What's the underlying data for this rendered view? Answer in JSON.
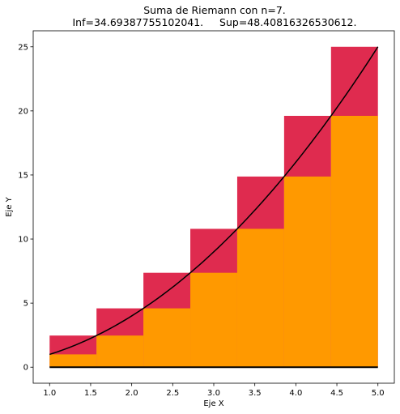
{
  "chart_data": {
    "type": "bar",
    "title": "Suma de Riemann con n=7.",
    "subtitle": "Inf=34.69387755102041.     Sup=48.40816326530612.",
    "xlabel": "Eje X",
    "ylabel": "Eje Y",
    "xlim": [
      0.8,
      5.2
    ],
    "ylim": [
      -1.25,
      26.25
    ],
    "xticks": [
      1.0,
      1.5,
      2.0,
      2.5,
      3.0,
      3.5,
      4.0,
      4.5,
      5.0
    ],
    "xtick_labels": [
      "1.0",
      "1.5",
      "2.0",
      "2.5",
      "3.0",
      "3.5",
      "4.0",
      "4.5",
      "5.0"
    ],
    "yticks": [
      0,
      5,
      10,
      15,
      20,
      25
    ],
    "ytick_labels": [
      "0",
      "5",
      "10",
      "15",
      "20",
      "25"
    ],
    "grid": false,
    "function": "x^2",
    "interval": [
      1,
      5
    ],
    "n": 7,
    "x_left_edges": [
      1.0,
      1.5714,
      2.1429,
      2.7143,
      3.2857,
      3.8571,
      4.4286
    ],
    "bar_width": 0.5714,
    "series": [
      {
        "values": [
          2.4694,
          4.5918,
          7.3673,
          10.7959,
          14.8776,
          19.6122,
          25.0
        ]
      },
      {
        "values": [
          1.0,
          2.4694,
          4.5918,
          7.3673,
          10.7959,
          14.8776,
          19.6122
        ]
      }
    ],
    "colors": {
      "upper": "#dc143c",
      "lower": "#ff9900",
      "curve": "#000000",
      "baseline": "#000000"
    }
  }
}
